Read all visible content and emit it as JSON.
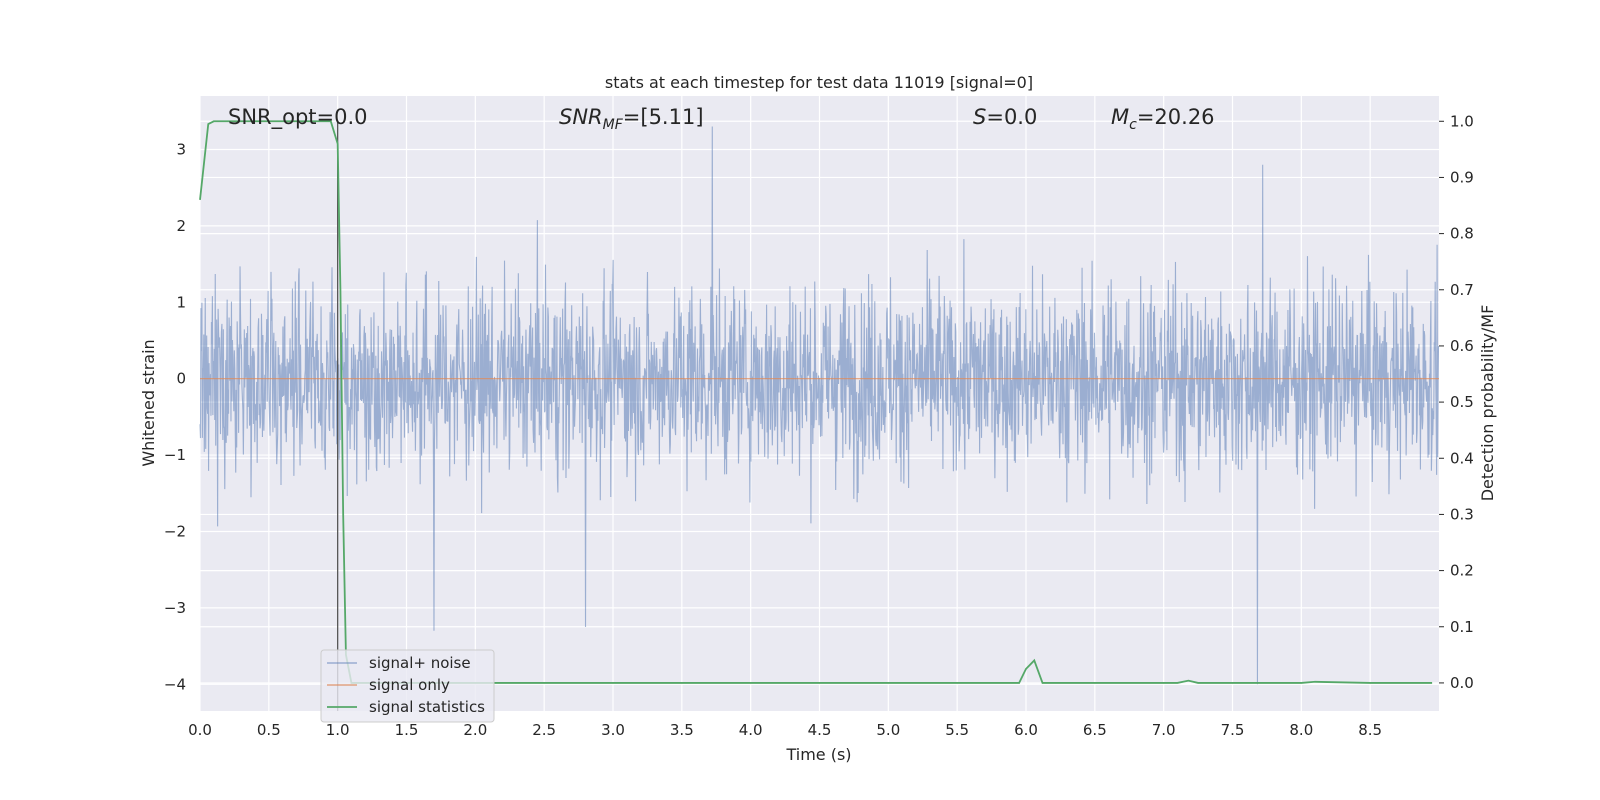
{
  "chart_data": {
    "type": "line",
    "title": "stats at each timestep for test data 11019 [signal=0]",
    "xlabel": "Time (s)",
    "ylabel_left": "Whitened strain",
    "ylabel_right": "Detection probability/MF",
    "xlim": [
      0.0,
      9.0
    ],
    "ylim_left": [
      -4.35,
      3.7
    ],
    "ylim_right": [
      -0.05,
      1.045
    ],
    "x_ticks": [
      "0.0",
      "0.5",
      "1.0",
      "1.5",
      "2.0",
      "2.5",
      "3.0",
      "3.5",
      "4.0",
      "4.5",
      "5.0",
      "5.5",
      "6.0",
      "6.5",
      "7.0",
      "7.5",
      "8.0",
      "8.5"
    ],
    "y_left_ticks": [
      "3",
      "2",
      "1",
      "0",
      "−1",
      "−2",
      "−3",
      "−4"
    ],
    "y_right_ticks": [
      "1.0",
      "0.9",
      "0.8",
      "0.7",
      "0.6",
      "0.5",
      "0.4",
      "0.3",
      "0.2",
      "0.1",
      "0.0"
    ],
    "grid": true,
    "legend_position": "lower-left",
    "annotations": {
      "snr_opt": "SNR_opt=0.0",
      "snr_mf": "=[5.11]",
      "s": "=0.0",
      "mc": "=20.26"
    },
    "vertical_marker_x": 1.0,
    "series": [
      {
        "name": "signal+ noise",
        "color": "#4c72b0",
        "axis": "left",
        "description_values": {
          "typical_range": [
            -2.0,
            2.2
          ],
          "extremes": [
            [
              1.7,
              -3.3
            ],
            [
              2.8,
              -3.25
            ],
            [
              3.72,
              3.3
            ],
            [
              7.68,
              -4.0
            ],
            [
              7.72,
              2.8
            ]
          ]
        }
      },
      {
        "name": "signal only",
        "color": "#dd8452",
        "axis": "left",
        "x": [
          0.0,
          9.0
        ],
        "y": [
          0.0,
          0.0
        ]
      },
      {
        "name": "signal statistics",
        "color": "#55a868",
        "axis": "right",
        "x": [
          0.0,
          0.06,
          0.1,
          0.5,
          0.8,
          0.95,
          1.0,
          1.02,
          1.04,
          1.06,
          1.1,
          1.15,
          5.5,
          5.95,
          6.0,
          6.06,
          6.12,
          6.5,
          7.1,
          7.18,
          7.25,
          7.5,
          8.0,
          8.1,
          8.5,
          8.95
        ],
        "y": [
          0.86,
          0.995,
          1.0,
          1.0,
          1.0,
          1.0,
          0.96,
          0.7,
          0.3,
          0.05,
          0.0,
          0.0,
          0.0,
          0.0,
          0.025,
          0.04,
          0.0,
          0.0,
          0.0,
          0.004,
          0.0,
          0.0,
          0.0,
          0.002,
          0.0,
          0.0
        ]
      }
    ]
  }
}
